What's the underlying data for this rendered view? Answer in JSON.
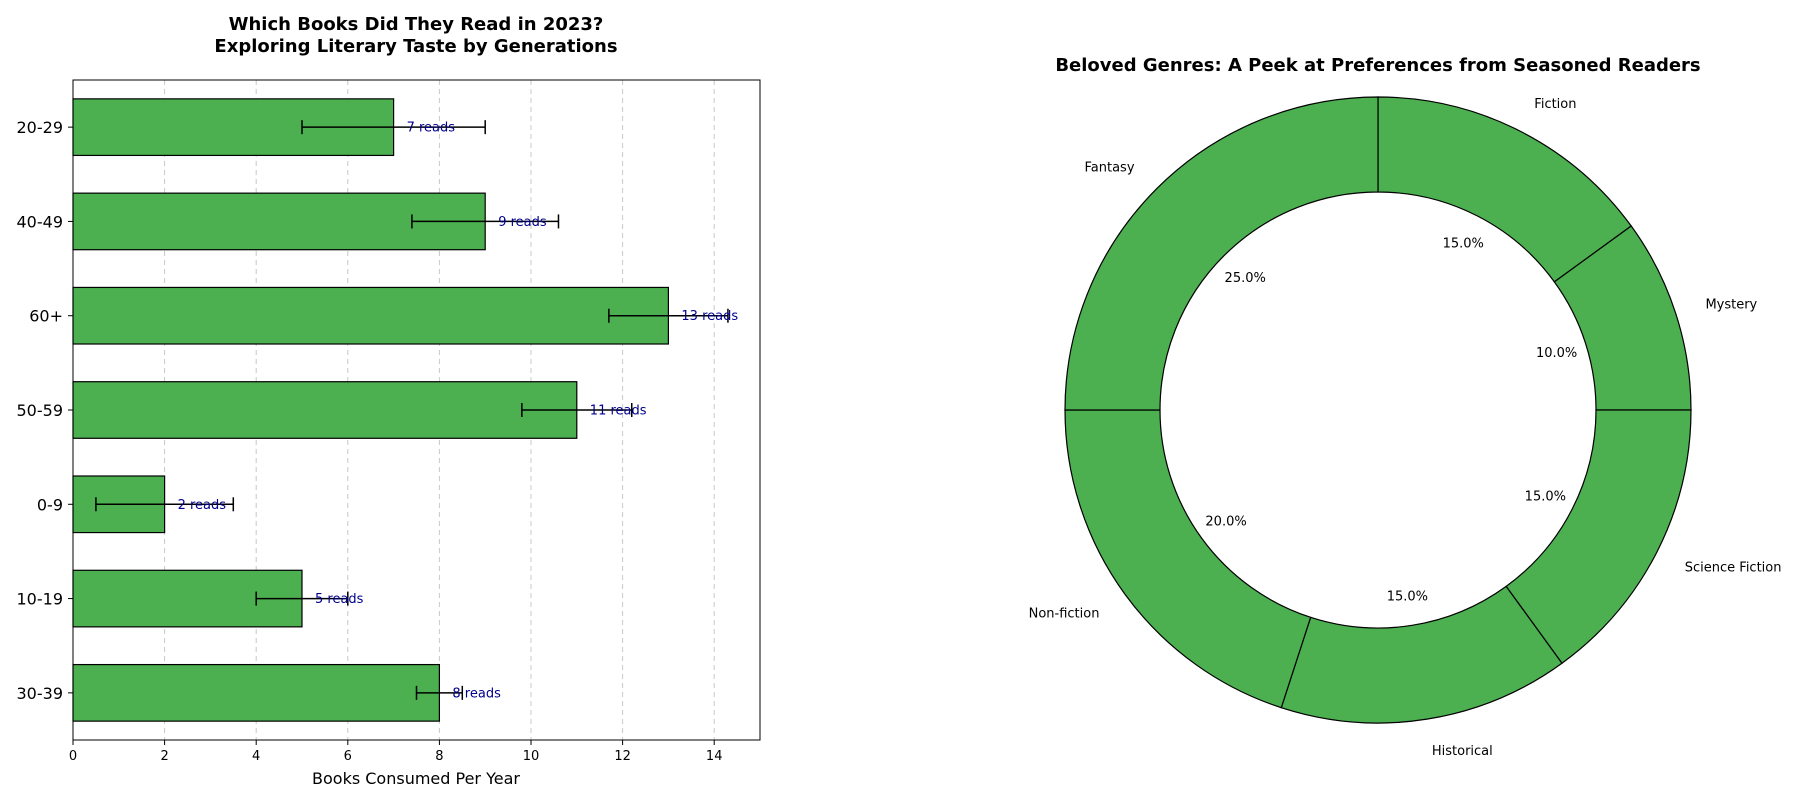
{
  "chart_data": [
    {
      "type": "bar",
      "orientation": "horizontal",
      "title_line1": "Which Books Did They Read in 2023?",
      "title_line2": "Exploring Literary Taste by Generations",
      "xlabel": "Books Consumed Per Year",
      "ylabel": "",
      "xlim": [
        0,
        15
      ],
      "xticks": [
        0,
        2,
        4,
        6,
        8,
        10,
        12,
        14
      ],
      "grid": "x-dashed",
      "bar_color": "#4caf50",
      "label_color": "#00008b",
      "categories": [
        "20-29",
        "40-49",
        "60+",
        "50-59",
        "0-9",
        "10-19",
        "30-39"
      ],
      "values": [
        7,
        9,
        13,
        11,
        2,
        5,
        8
      ],
      "errors": [
        2,
        1.6,
        1.3,
        1.2,
        1.5,
        1,
        0.5
      ],
      "labels": [
        "7 reads",
        "9 reads",
        "13 reads",
        "11 reads",
        "2 reads",
        "5 reads",
        "8 reads"
      ]
    },
    {
      "type": "pie",
      "style": "donut",
      "title": "Beloved Genres: A Peek at Preferences from Seasoned Readers",
      "slice_color": "#4caf50",
      "categories": [
        "Fiction",
        "Mystery",
        "Science Fiction",
        "Historical",
        "Non-fiction",
        "Fantasy"
      ],
      "values": [
        15,
        10,
        15,
        15,
        20,
        25
      ],
      "percent_labels": [
        "15.0%",
        "10.0%",
        "15.0%",
        "15.0%",
        "20.0%",
        "25.0%"
      ]
    }
  ]
}
